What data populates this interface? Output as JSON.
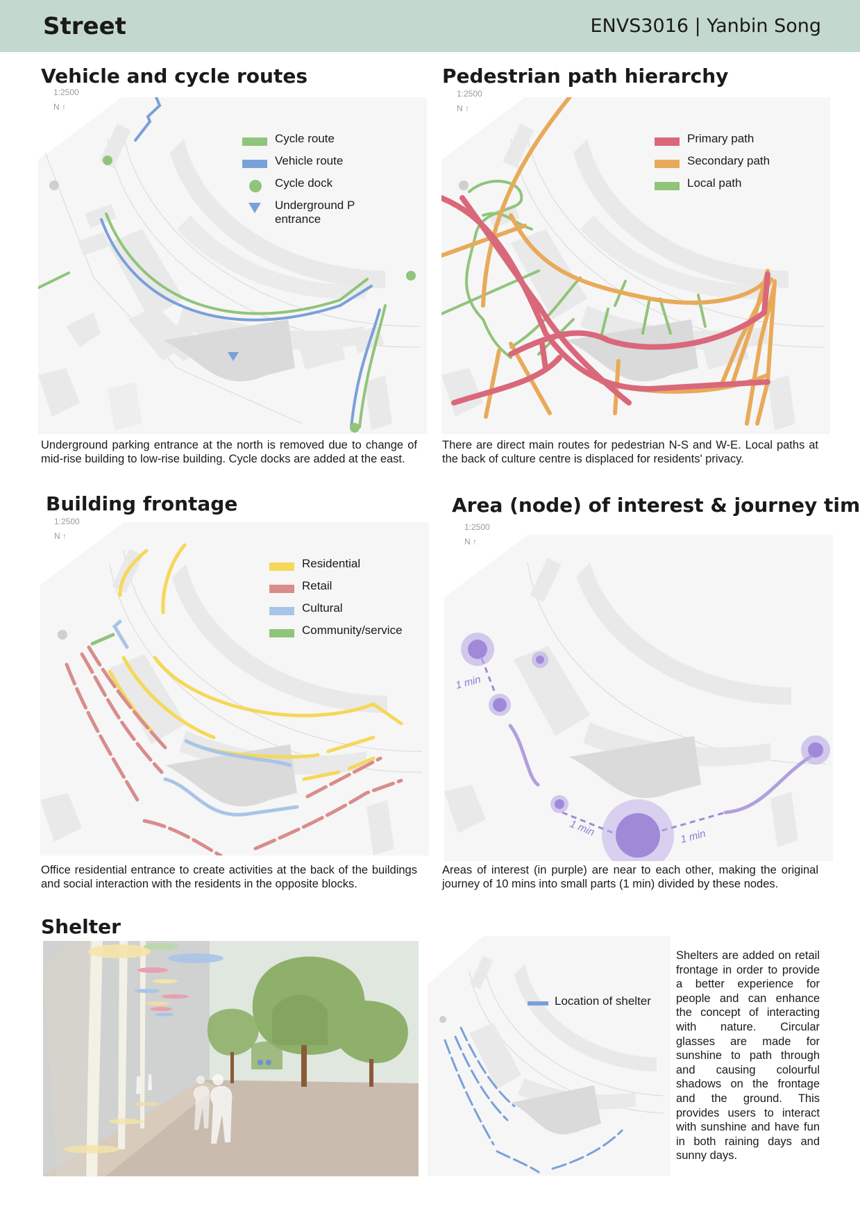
{
  "header": {
    "title": "Street",
    "course_author": "ENVS3016 | Yanbin Song"
  },
  "panels": {
    "vehicle": {
      "title": "Vehicle and cycle routes",
      "scale": "1:2500",
      "north": "N ↑",
      "legend": [
        {
          "label": "Cycle route",
          "color": "#90c47a"
        },
        {
          "label": "Vehicle route",
          "color": "#7aa0d8"
        },
        {
          "label": "Cycle dock",
          "color": "#90c47a"
        },
        {
          "label": "Underground P entrance",
          "color": "#7aa0d8"
        }
      ],
      "caption": "Underground parking entrance at the north is removed due to change of mid-rise building to low-rise building. Cycle docks are added at the east."
    },
    "pedestrian": {
      "title": "Pedestrian path hierarchy",
      "scale": "1:2500",
      "north": "N ↑",
      "legend": [
        {
          "label": "Primary path",
          "color": "#d9687a"
        },
        {
          "label": "Secondary path",
          "color": "#e8aa5a"
        },
        {
          "label": "Local path",
          "color": "#90c47a"
        }
      ],
      "caption": "There are direct main routes for pedestrian N-S and W-E. Local paths at the back of culture centre is displaced for residents' privacy."
    },
    "frontage": {
      "title": "Building frontage",
      "scale": "1:2500",
      "north": "N ↑",
      "legend": [
        {
          "label": "Residential",
          "color": "#f5d85a"
        },
        {
          "label": "Retail",
          "color": "#d98c8c"
        },
        {
          "label": "Cultural",
          "color": "#a8c4e8"
        },
        {
          "label": "Community/service",
          "color": "#90c47a"
        }
      ],
      "caption": "Office residential entrance to create activities at the back of the buildings and social interaction with the residents in the opposite blocks."
    },
    "nodes": {
      "title": "Area (node) of interest & journey time",
      "scale": "1:2500",
      "north": "N ↑",
      "journey_labels": [
        "1 min",
        "1 min",
        "1 min"
      ],
      "caption": "Areas of interest (in purple) are near to each other, making the original journey of 10 mins into small parts (1 min) divided by these nodes."
    },
    "shelter": {
      "title": "Shelter",
      "legend": [
        {
          "label": "Location of shelter",
          "color": "#7aa0d8"
        }
      ],
      "text": "Shelters are added on retail frontage in order to provide a better experience for people and can enhance the concept of interacting with nature. Circular glasses are made for sunshine to path through and causing colourful shadows on the frontage and the ground. This provides users to interact with sunshine and have fun in both raining days and sunny days."
    }
  }
}
